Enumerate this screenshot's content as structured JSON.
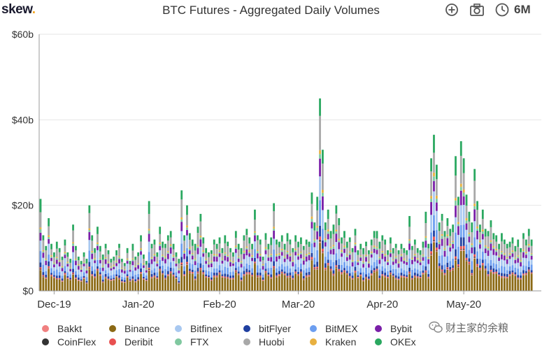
{
  "header": {
    "brand": "skew",
    "brand_dot": ".",
    "title": "BTC Futures - Aggregated Daily Volumes",
    "controls": [
      {
        "name": "zoom-in-icon"
      },
      {
        "name": "camera-icon"
      },
      {
        "name": "clock-icon"
      }
    ],
    "range": "6M"
  },
  "watermark": "财主家的余粮",
  "chart_data": {
    "type": "bar",
    "stacked": true,
    "ylabel": "",
    "xlabel": "",
    "ylim": [
      0,
      60
    ],
    "yticks": [
      "$0",
      "$20b",
      "$40b",
      "$60b"
    ],
    "ytick_values": [
      0,
      20,
      40,
      60
    ],
    "grid": true,
    "legend_position": "bottom",
    "x_range": [
      "2019-12-01",
      "2020-05-31"
    ],
    "xticks": [
      {
        "label": "Dec-19",
        "date": "2019-12-06"
      },
      {
        "label": "Jan-20",
        "date": "2020-01-06"
      },
      {
        "label": "Feb-20",
        "date": "2020-02-05"
      },
      {
        "label": "Mar-20",
        "date": "2020-03-05"
      },
      {
        "label": "Apr-20",
        "date": "2020-04-05"
      },
      {
        "label": "May-20",
        "date": "2020-05-05"
      }
    ],
    "series": [
      {
        "name": "Bakkt",
        "color": "#f08080"
      },
      {
        "name": "Binance",
        "color": "#8b6914"
      },
      {
        "name": "Bitfinex",
        "color": "#a8c8f0"
      },
      {
        "name": "bitFlyer",
        "color": "#1f3fa0"
      },
      {
        "name": "BitMEX",
        "color": "#6c9ef0"
      },
      {
        "name": "Bybit",
        "color": "#7a1fa8"
      },
      {
        "name": "CoinFlex",
        "color": "#333333"
      },
      {
        "name": "Deribit",
        "color": "#e85050"
      },
      {
        "name": "FTX",
        "color": "#80c8a0"
      },
      {
        "name": "Huobi",
        "color": "#a8a8a8"
      },
      {
        "name": "Kraken",
        "color": "#e8b040"
      },
      {
        "name": "OKEx",
        "color": "#2aa860"
      }
    ],
    "daily_total": [
      21.5,
      13.0,
      10.5,
      17.0,
      11.0,
      9.0,
      11.5,
      10.0,
      8.0,
      12.0,
      9.0,
      7.5,
      15.5,
      10.5,
      8.0,
      7.0,
      9.0,
      7.5,
      20.0,
      13.0,
      10.0,
      15.0,
      10.5,
      8.5,
      11.0,
      9.5,
      7.5,
      8.0,
      9.5,
      11.0,
      7.5,
      6.5,
      10.0,
      7.0,
      11.0,
      8.0,
      9.0,
      13.0,
      8.5,
      7.0,
      21.0,
      11.0,
      12.0,
      9.0,
      15.0,
      11.5,
      11.0,
      13.0,
      14.0,
      11.0,
      9.0,
      7.5,
      23.5,
      13.0,
      20.0,
      13.5,
      12.0,
      11.0,
      15.0,
      18.0,
      12.5,
      10.0,
      9.0,
      9.5,
      12.0,
      11.0,
      12.5,
      10.0,
      13.0,
      11.5,
      10.0,
      9.0,
      14.0,
      11.0,
      10.0,
      13.0,
      14.5,
      12.5,
      11.0,
      19.0,
      13.0,
      12.0,
      8.0,
      13.5,
      11.0,
      12.5,
      20.5,
      12.0,
      11.5,
      13.0,
      11.0,
      13.5,
      12.0,
      10.0,
      13.0,
      11.5,
      12.5,
      10.5,
      12.0,
      11.5,
      23.0,
      16.0,
      22.0,
      45.0,
      33.0,
      16.0,
      19.0,
      14.0,
      15.5,
      20.0,
      17.0,
      12.5,
      14.0,
      11.5,
      12.5,
      10.0,
      14.5,
      9.5,
      11.0,
      10.0,
      11.5,
      9.5,
      12.0,
      14.0,
      14.0,
      11.5,
      13.0,
      12.0,
      9.5,
      12.5,
      10.0,
      11.0,
      9.5,
      11.0,
      10.0,
      9.5,
      17.5,
      10.5,
      12.0,
      10.0,
      9.5,
      11.5,
      18.5,
      11.0,
      31.0,
      36.5,
      29.5,
      16.0,
      18.0,
      14.0,
      17.0,
      14.5,
      15.5,
      31.5,
      22.0,
      35.0,
      31.0,
      22.5,
      18.5,
      16.0,
      28.5,
      21.0,
      15.5,
      19.0,
      14.5,
      14.0,
      16.5,
      13.5,
      13.0,
      11.0,
      13.5,
      12.0,
      11.0,
      11.5,
      12.5,
      10.5,
      12.0,
      10.0,
      13.5,
      12.0,
      14.5,
      12.0
    ]
  }
}
